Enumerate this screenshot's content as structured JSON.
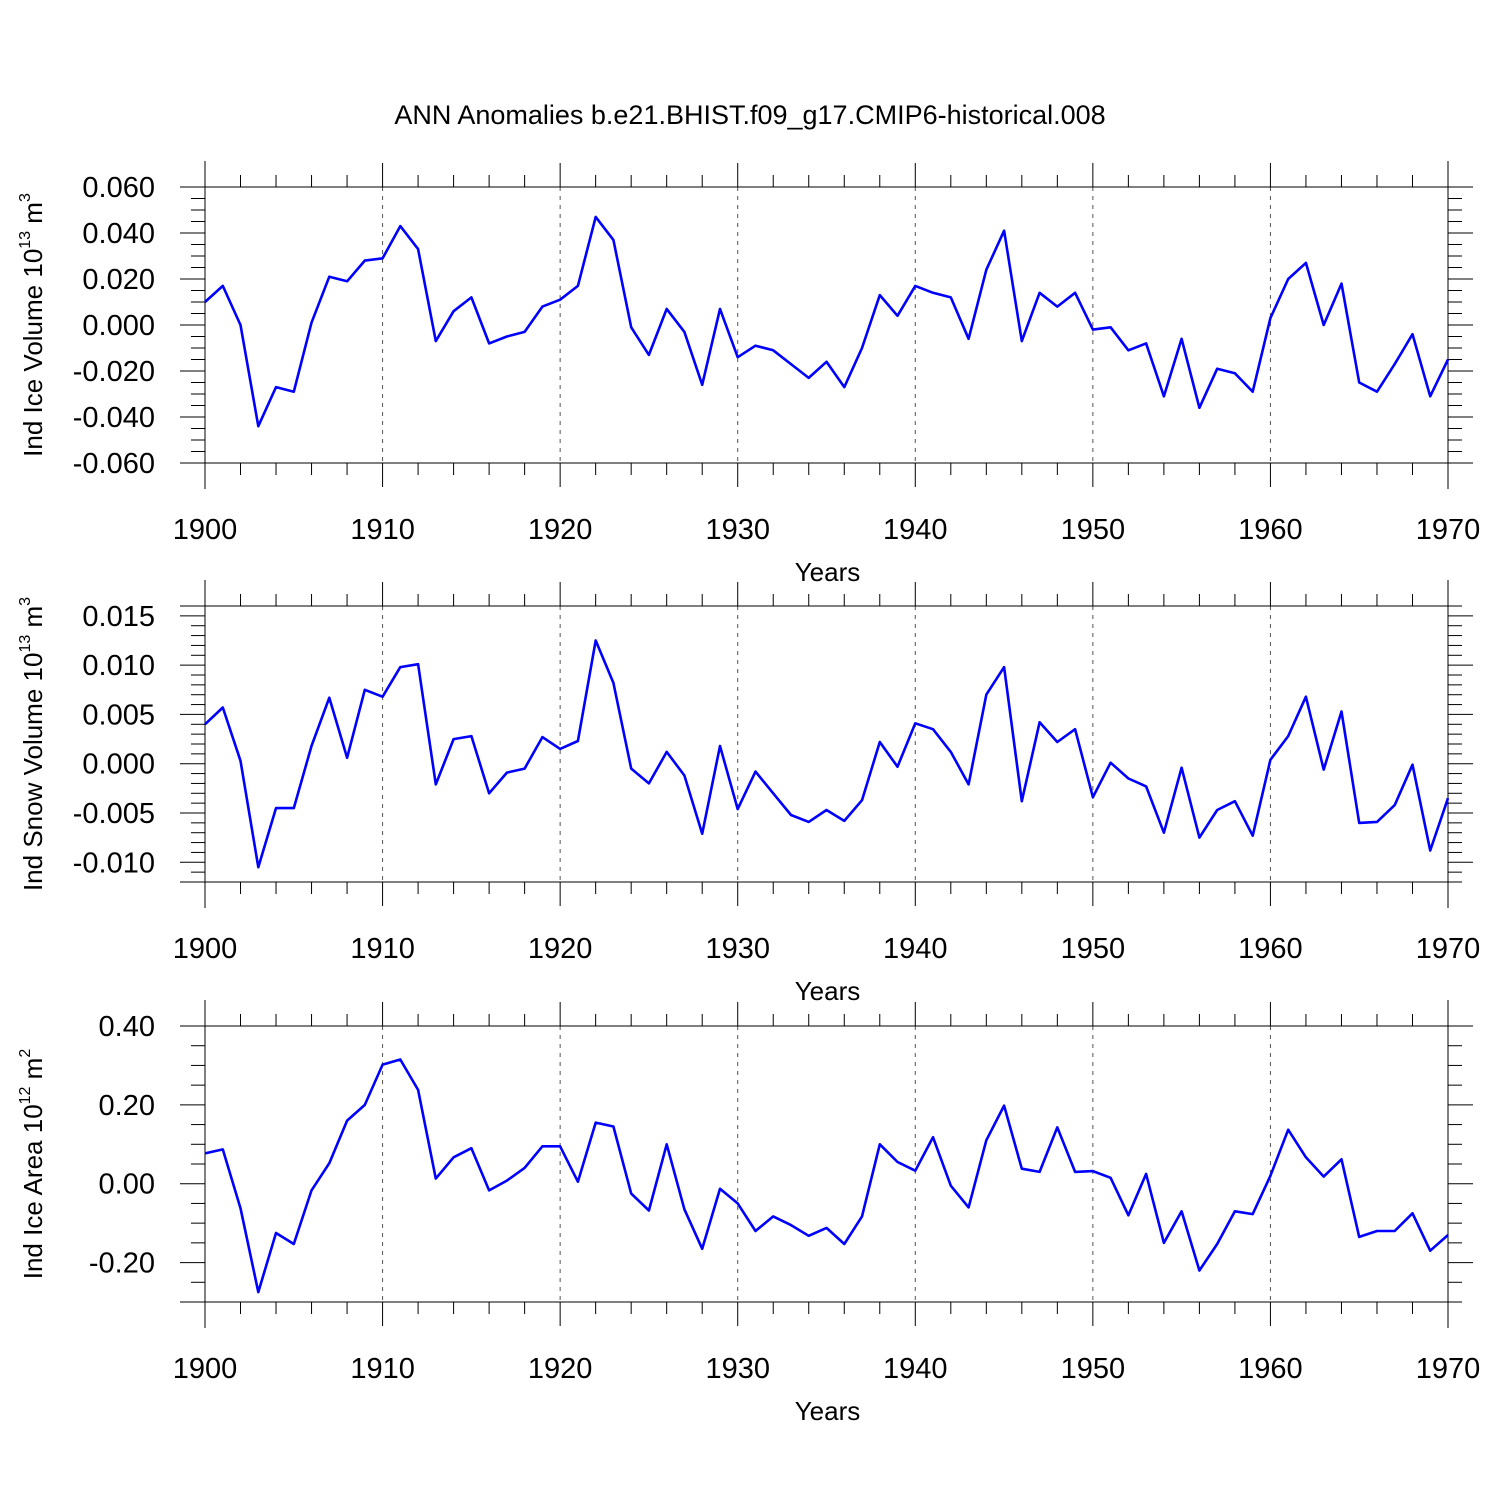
{
  "figure": {
    "title": "ANN Anomalies b.e21.BHIST.f09_g17.CMIP6-historical.008"
  },
  "colors": {
    "series": "#0000ff",
    "axes": "#000000",
    "grid": "#555555"
  },
  "chart_data": [
    {
      "type": "line",
      "ylabel_main": "Ind Ice Volume 10",
      "ylabel_exp": "13",
      "ylabel_unit": " m",
      "ylabel_unit_exp": "3",
      "xlabel": "Years",
      "xlim": [
        1900,
        1970
      ],
      "ylim": [
        -0.06,
        0.06
      ],
      "xticks": [
        1900,
        1910,
        1920,
        1930,
        1940,
        1950,
        1960,
        1970
      ],
      "xtick_labels": [
        "1900",
        "1910",
        "1920",
        "1930",
        "1940",
        "1950",
        "1960",
        "1970"
      ],
      "yticks": [
        -0.06,
        -0.04,
        -0.02,
        0.0,
        0.02,
        0.04,
        0.06
      ],
      "ytick_labels": [
        "-0.060",
        "-0.040",
        "-0.020",
        "0.000",
        "0.020",
        "0.040",
        "0.060"
      ],
      "yminor_step": 0.005,
      "grid": "vertical dashed at decades",
      "x": [
        1900,
        1901,
        1902,
        1903,
        1904,
        1905,
        1906,
        1907,
        1908,
        1909,
        1910,
        1911,
        1912,
        1913,
        1914,
        1915,
        1916,
        1917,
        1918,
        1919,
        1920,
        1921,
        1922,
        1923,
        1924,
        1925,
        1926,
        1927,
        1928,
        1929,
        1930,
        1931,
        1932,
        1933,
        1934,
        1935,
        1936,
        1937,
        1938,
        1939,
        1940,
        1941,
        1942,
        1943,
        1944,
        1945,
        1946,
        1947,
        1948,
        1949,
        1950,
        1951,
        1952,
        1953,
        1954,
        1955,
        1956,
        1957,
        1958,
        1959,
        1960,
        1961,
        1962,
        1963,
        1964,
        1965,
        1966,
        1967,
        1968,
        1969,
        1970
      ],
      "series": [
        {
          "name": "Ind Ice Volume",
          "values": [
            0.01,
            0.017,
            0.0,
            -0.044,
            -0.027,
            -0.029,
            0.001,
            0.021,
            0.019,
            0.028,
            0.029,
            0.043,
            0.033,
            -0.007,
            0.006,
            0.012,
            -0.008,
            -0.005,
            -0.003,
            0.008,
            0.011,
            0.017,
            0.047,
            0.037,
            -0.001,
            -0.013,
            0.007,
            -0.003,
            -0.026,
            0.007,
            -0.014,
            -0.009,
            -0.011,
            -0.017,
            -0.023,
            -0.016,
            -0.027,
            -0.01,
            0.013,
            0.004,
            0.017,
            0.014,
            0.012,
            -0.006,
            0.024,
            0.041,
            -0.007,
            0.014,
            0.008,
            0.014,
            -0.002,
            -0.001,
            -0.011,
            -0.008,
            -0.031,
            -0.006,
            -0.036,
            -0.019,
            -0.021,
            -0.029,
            0.003,
            0.02,
            0.027,
            0.0,
            0.018,
            -0.025,
            -0.029,
            -0.017,
            -0.004,
            -0.031,
            -0.015
          ]
        }
      ]
    },
    {
      "type": "line",
      "ylabel_main": "Ind Snow Volume 10",
      "ylabel_exp": "13",
      "ylabel_unit": " m",
      "ylabel_unit_exp": "3",
      "xlabel": "Years",
      "xlim": [
        1900,
        1970
      ],
      "ylim": [
        -0.012,
        0.016
      ],
      "xticks": [
        1900,
        1910,
        1920,
        1930,
        1940,
        1950,
        1960,
        1970
      ],
      "xtick_labels": [
        "1900",
        "1910",
        "1920",
        "1930",
        "1940",
        "1950",
        "1960",
        "1970"
      ],
      "yticks": [
        -0.01,
        -0.005,
        0.0,
        0.005,
        0.01,
        0.015
      ],
      "ytick_labels": [
        "-0.010",
        "-0.005",
        "0.000",
        "0.005",
        "0.010",
        "0.015"
      ],
      "yminor_step": 0.001,
      "grid": "vertical dashed at decades",
      "x": [
        1900,
        1901,
        1902,
        1903,
        1904,
        1905,
        1906,
        1907,
        1908,
        1909,
        1910,
        1911,
        1912,
        1913,
        1914,
        1915,
        1916,
        1917,
        1918,
        1919,
        1920,
        1921,
        1922,
        1923,
        1924,
        1925,
        1926,
        1927,
        1928,
        1929,
        1930,
        1931,
        1932,
        1933,
        1934,
        1935,
        1936,
        1937,
        1938,
        1939,
        1940,
        1941,
        1942,
        1943,
        1944,
        1945,
        1946,
        1947,
        1948,
        1949,
        1950,
        1951,
        1952,
        1953,
        1954,
        1955,
        1956,
        1957,
        1958,
        1959,
        1960,
        1961,
        1962,
        1963,
        1964,
        1965,
        1966,
        1967,
        1968,
        1969,
        1970
      ],
      "series": [
        {
          "name": "Ind Snow Volume",
          "values": [
            0.004,
            0.0057,
            0.0003,
            -0.0105,
            -0.0045,
            -0.0045,
            0.0018,
            0.0067,
            0.0006,
            0.0075,
            0.0068,
            0.0098,
            0.0101,
            -0.0021,
            0.0025,
            0.0028,
            -0.003,
            -0.0009,
            -0.0005,
            0.0027,
            0.0015,
            0.0023,
            0.0125,
            0.0082,
            -0.0005,
            -0.002,
            0.0012,
            -0.0012,
            -0.0071,
            0.0018,
            -0.0046,
            -0.0008,
            -0.003,
            -0.0052,
            -0.0059,
            -0.0047,
            -0.0058,
            -0.0037,
            0.0022,
            -0.0003,
            0.0041,
            0.0035,
            0.0012,
            -0.0021,
            0.007,
            0.0098,
            -0.0038,
            0.0042,
            0.0022,
            0.0035,
            -0.0034,
            0.0001,
            -0.0015,
            -0.0023,
            -0.007,
            -0.0004,
            -0.0075,
            -0.0047,
            -0.0038,
            -0.0073,
            0.0004,
            0.0028,
            0.0068,
            -0.0006,
            0.0053,
            -0.006,
            -0.0059,
            -0.0042,
            -0.0001,
            -0.0088,
            -0.0035
          ]
        }
      ]
    },
    {
      "type": "line",
      "ylabel_main": "Ind Ice Area 10",
      "ylabel_exp": "12",
      "ylabel_unit": " m",
      "ylabel_unit_exp": "2",
      "xlabel": "Years",
      "xlim": [
        1900,
        1970
      ],
      "ylim": [
        -0.3,
        0.4
      ],
      "xticks": [
        1900,
        1910,
        1920,
        1930,
        1940,
        1950,
        1960,
        1970
      ],
      "xtick_labels": [
        "1900",
        "1910",
        "1920",
        "1930",
        "1940",
        "1950",
        "1960",
        "1970"
      ],
      "yticks": [
        -0.2,
        0.0,
        0.2,
        0.4
      ],
      "ytick_labels": [
        "-0.20",
        "0.00",
        "0.20",
        "0.40"
      ],
      "yminor_step": 0.05,
      "grid": "vertical dashed at decades",
      "x": [
        1900,
        1901,
        1902,
        1903,
        1904,
        1905,
        1906,
        1907,
        1908,
        1909,
        1910,
        1911,
        1912,
        1913,
        1914,
        1915,
        1916,
        1917,
        1918,
        1919,
        1920,
        1921,
        1922,
        1923,
        1924,
        1925,
        1926,
        1927,
        1928,
        1929,
        1930,
        1931,
        1932,
        1933,
        1934,
        1935,
        1936,
        1937,
        1938,
        1939,
        1940,
        1941,
        1942,
        1943,
        1944,
        1945,
        1946,
        1947,
        1948,
        1949,
        1950,
        1951,
        1952,
        1953,
        1954,
        1955,
        1956,
        1957,
        1958,
        1959,
        1960,
        1961,
        1962,
        1963,
        1964,
        1965,
        1966,
        1967,
        1968,
        1969,
        1970
      ],
      "series": [
        {
          "name": "Ind Ice Area",
          "values": [
            0.077,
            0.087,
            -0.062,
            -0.275,
            -0.125,
            -0.153,
            -0.017,
            0.052,
            0.16,
            0.2,
            0.302,
            0.315,
            0.238,
            0.013,
            0.067,
            0.09,
            -0.017,
            0.008,
            0.04,
            0.095,
            0.095,
            0.005,
            0.155,
            0.145,
            -0.025,
            -0.068,
            0.1,
            -0.065,
            -0.165,
            -0.013,
            -0.05,
            -0.12,
            -0.083,
            -0.105,
            -0.132,
            -0.112,
            -0.153,
            -0.083,
            0.1,
            0.055,
            0.033,
            0.118,
            -0.005,
            -0.06,
            0.11,
            0.198,
            0.038,
            0.03,
            0.143,
            0.03,
            0.032,
            0.015,
            -0.08,
            0.025,
            -0.15,
            -0.07,
            -0.22,
            -0.153,
            -0.07,
            -0.077,
            0.02,
            0.137,
            0.067,
            0.018,
            0.062,
            -0.135,
            -0.12,
            -0.12,
            -0.075,
            -0.17,
            -0.13
          ]
        }
      ]
    }
  ]
}
